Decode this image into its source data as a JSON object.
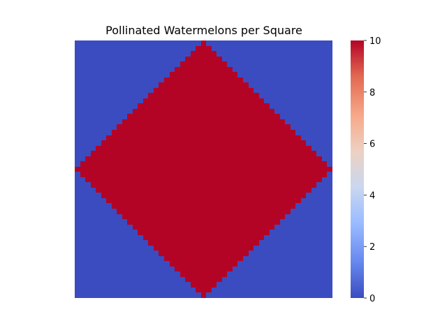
{
  "chart_data": {
    "type": "heatmap",
    "title": "Pollinated Watermelons per Square",
    "xlabel": "",
    "ylabel": "",
    "grid_size": 49,
    "pattern": "diamond: cells with |row-24| + |col-24| <= 24 have value 10, all other cells have value 0",
    "cell_value_inside": 10,
    "cell_value_outside": 0,
    "colormap": "coolwarm",
    "colorbar": {
      "range": [
        0,
        10
      ],
      "ticks": [
        0,
        2,
        4,
        6,
        8,
        10
      ],
      "tick_labels": [
        "0",
        "2",
        "4",
        "6",
        "8",
        "10"
      ],
      "colors": [
        "#3b4cc0",
        "#6788ee",
        "#9abbff",
        "#c9d7f0",
        "#edd1c2",
        "#f7a889",
        "#e26952",
        "#b40426"
      ]
    },
    "axes_visible": false,
    "grid": false
  }
}
